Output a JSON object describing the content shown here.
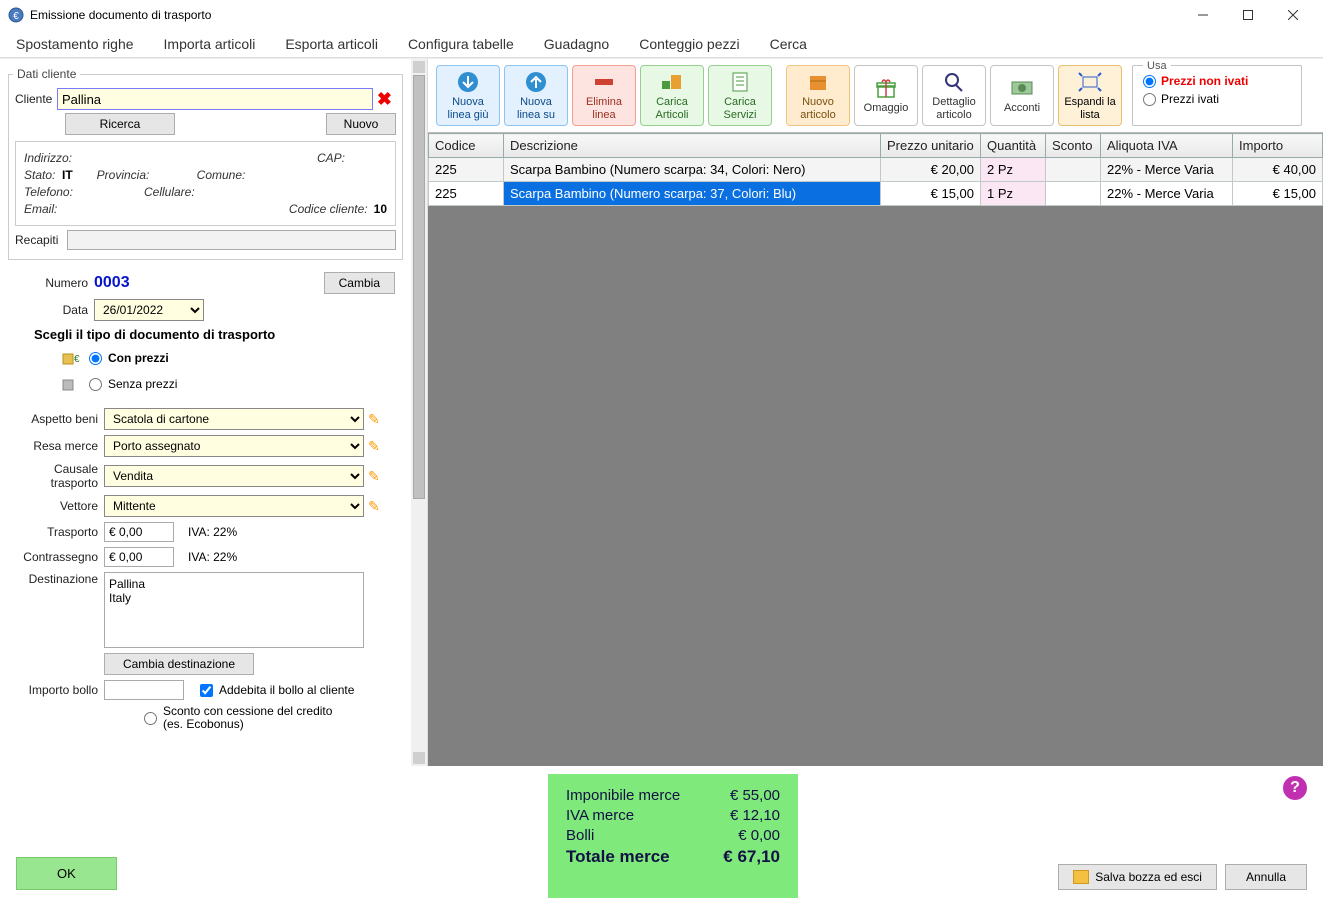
{
  "window": {
    "title": "Emissione documento di trasporto"
  },
  "menu": [
    "Spostamento righe",
    "Importa articoli",
    "Esporta articoli",
    "Configura tabelle",
    "Guadagno",
    "Conteggio pezzi",
    "Cerca"
  ],
  "client_box": {
    "legend": "Dati cliente",
    "cliente_label": "Cliente",
    "cliente_value": "Pallina",
    "ricerca_btn": "Ricerca",
    "nuovo_btn": "Nuovo",
    "fields": {
      "indirizzo_label": "Indirizzo:",
      "cap_label": "CAP:",
      "stato_label": "Stato:",
      "stato_value": "IT",
      "provincia_label": "Provincia:",
      "comune_label": "Comune:",
      "telefono_label": "Telefono:",
      "cellulare_label": "Cellulare:",
      "email_label": "Email:",
      "codice_cliente_label": "Codice cliente:",
      "codice_cliente_value": "10",
      "recapiti_label": "Recapiti"
    }
  },
  "doc": {
    "numero_label": "Numero",
    "numero_value": "0003",
    "cambia_btn": "Cambia",
    "data_label": "Data",
    "data_value": "26/01/2022",
    "tipo_title": "Scegli il tipo di documento di trasporto",
    "tipo_con_prezzi": "Con prezzi",
    "tipo_senza_prezzi": "Senza prezzi"
  },
  "transport": {
    "aspetto_beni_label": "Aspetto beni",
    "aspetto_beni_value": "Scatola di cartone",
    "resa_merce_label": "Resa merce",
    "resa_merce_value": "Porto assegnato",
    "causale_label": "Causale trasporto",
    "causale_value": "Vendita",
    "vettore_label": "Vettore",
    "vettore_value": "Mittente",
    "trasporto_label": "Trasporto",
    "trasporto_value": "€ 0,00",
    "trasporto_iva": "IVA: 22%",
    "contrassegno_label": "Contrassegno",
    "contrassegno_value": "€ 0,00",
    "contrassegno_iva": "IVA: 22%",
    "destinazione_label": "Destinazione",
    "destinazione_value": "Pallina\nItaly",
    "cambia_dest_btn": "Cambia destinazione",
    "importo_bollo_label": "Importo bollo",
    "addebita_bollo_label": "Addebita il bollo al cliente",
    "sconto_cessione_label": "Sconto con cessione del credito (es. Ecobonus)"
  },
  "toolbar": {
    "nuova_giu": "Nuova linea giù",
    "nuova_su": "Nuova linea su",
    "elimina": "Elimina linea",
    "carica_articoli": "Carica Articoli",
    "carica_servizi": "Carica Servizi",
    "nuovo_articolo": "Nuovo articolo",
    "omaggio": "Omaggio",
    "dettaglio": "Dettaglio articolo",
    "acconti": "Acconti",
    "espandi": "Espandi la lista",
    "usa_title": "Usa",
    "usa_non_ivati": "Prezzi non ivati",
    "usa_ivati": "Prezzi ivati"
  },
  "grid": {
    "columns": [
      "Codice",
      "Descrizione",
      "Prezzo unitario",
      "Quantità",
      "Sconto",
      "Aliquota IVA",
      "Importo"
    ],
    "col_widths": [
      "75px",
      "auto",
      "100px",
      "65px",
      "55px",
      "132px",
      "90px"
    ],
    "rows": [
      {
        "codice": "225",
        "descrizione": "Scarpa Bambino (Numero scarpa: 34, Colori: Nero)",
        "prezzo": "€ 20,00",
        "quantita": "2 Pz",
        "sconto": "",
        "iva": "22% - Merce Varia",
        "importo": "€ 40,00",
        "selected": false
      },
      {
        "codice": "225",
        "descrizione": "Scarpa Bambino (Numero scarpa: 37, Colori: Blu)",
        "prezzo": "€ 15,00",
        "quantita": "1 Pz",
        "sconto": "",
        "iva": "22% - Merce Varia",
        "importo": "€ 15,00",
        "selected": true
      }
    ]
  },
  "totals": {
    "imponibile_label": "Imponibile merce",
    "imponibile_value": "€ 55,00",
    "iva_label": "IVA merce",
    "iva_value": "€ 12,10",
    "bolli_label": "Bolli",
    "bolli_value": "€ 0,00",
    "totale_label": "Totale merce",
    "totale_value": "€ 67,10"
  },
  "footer_buttons": {
    "ok": "OK",
    "salva": "Salva bozza ed esci",
    "annulla": "Annulla"
  }
}
